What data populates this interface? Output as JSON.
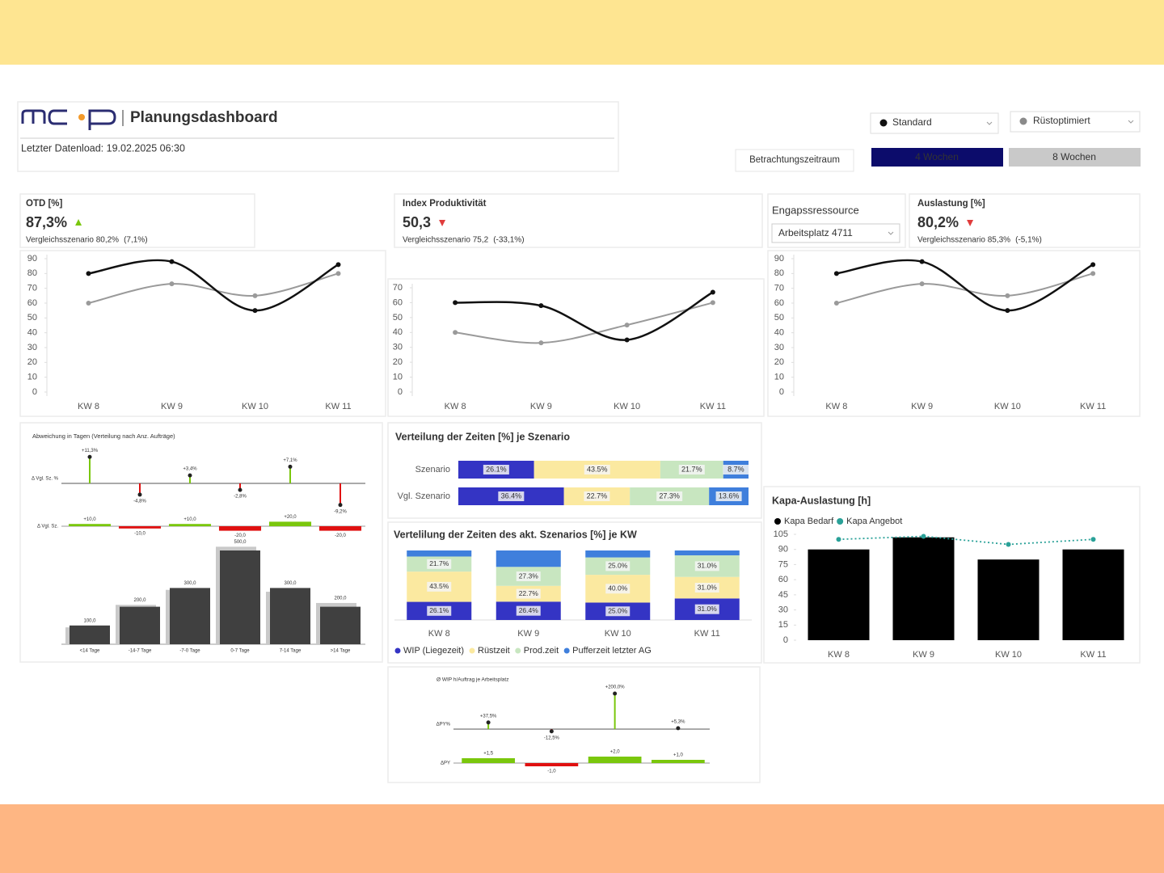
{
  "header": {
    "title": "Planungsdashboard",
    "last_load": "Letzter Datenload: 19.02.2025 06:30"
  },
  "controls": {
    "scenario": {
      "label": "Standard",
      "dot_color": "#111111"
    },
    "comparison": {
      "label": "Rüstoptimiert",
      "dot_color": "#8a8a8a"
    },
    "period_label": "Betrachtungszeitraum",
    "period_options": [
      {
        "label": "4 Wochen",
        "selected": true
      },
      {
        "label": "8 Wochen",
        "selected": false
      }
    ]
  },
  "kpis": [
    {
      "title": "OTD [%]",
      "value": "87,3%",
      "trend": "up",
      "trend_color": "#7ac70c",
      "comparison": "Vergleichsszenario 80,2%",
      "delta": "(7,1%)"
    },
    {
      "title": "Index Produktivität",
      "value": "50,3",
      "trend": "down",
      "trend_color": "#e03c3c",
      "comparison": "Vergleichsszenario 75,2",
      "delta": "(-33,1%)"
    },
    {
      "title": "Auslastung [%]",
      "value": "80,2%",
      "trend": "down",
      "trend_color": "#e03c3c",
      "comparison": "Vergleichsszenario 85,3%",
      "delta": "(-5,1%)"
    }
  ],
  "resource": {
    "label": "Engapssressource",
    "selected": "Arbeitsplatz 4711"
  },
  "chart_data": [
    {
      "type": "line",
      "categories": [
        "KW 8",
        "KW 9",
        "KW 10",
        "KW 11"
      ],
      "ylim": [
        0,
        90
      ],
      "yticks": [
        0,
        10,
        20,
        30,
        40,
        50,
        60,
        70,
        80,
        90
      ],
      "series": [
        {
          "color": "#111111",
          "values": [
            80,
            88,
            55,
            86
          ]
        },
        {
          "color": "#9a9a9a",
          "values": [
            60,
            73,
            65,
            80
          ]
        }
      ]
    },
    {
      "type": "line",
      "categories": [
        "KW 8",
        "KW 9",
        "KW 10",
        "KW 11"
      ],
      "ylim": [
        0,
        70
      ],
      "yticks": [
        0,
        10,
        20,
        30,
        40,
        50,
        60,
        70
      ],
      "series": [
        {
          "color": "#111111",
          "values": [
            60,
            58,
            35,
            67
          ]
        },
        {
          "color": "#9a9a9a",
          "values": [
            40,
            33,
            45,
            60
          ]
        }
      ]
    },
    {
      "type": "line",
      "categories": [
        "KW 8",
        "KW 9",
        "KW 10",
        "KW 11"
      ],
      "ylim": [
        0,
        90
      ],
      "yticks": [
        0,
        10,
        20,
        30,
        40,
        50,
        60,
        70,
        80,
        90
      ],
      "series": [
        {
          "color": "#111111",
          "values": [
            80,
            88,
            55,
            86
          ]
        },
        {
          "color": "#9a9a9a",
          "values": [
            60,
            73,
            65,
            80
          ]
        }
      ]
    },
    {
      "type": "deviation",
      "title": "Abweichung in Tagen (Verteilung nach Anz. Aufträge)",
      "categories": [
        "<14 Tage",
        "-14-7 Tage",
        "-7-0 Tage",
        "0-7 Tage",
        "7-14 Tage",
        ">14 Tage"
      ],
      "pct_axis_label": "Δ Vgl. Sz. %",
      "pct_values": [
        11.3,
        -4.8,
        3.4,
        -2.8,
        7.1,
        -9.2
      ],
      "pct_labels": [
        "+11,3%",
        "-4,8%",
        "+3,4%",
        "-2,8%",
        "+7,1%",
        "-9,2%"
      ],
      "abs_axis_label": "Δ Vgl. Sz.",
      "abs_values": [
        10,
        -10,
        10,
        -20,
        20,
        -20
      ],
      "abs_labels": [
        "+10,0",
        "-10,0",
        "+10,0",
        "-20,0",
        "+20,0",
        "-20,0"
      ],
      "values": [
        100,
        200,
        300,
        500,
        300,
        200
      ],
      "value_labels": [
        "100,0",
        "200,0",
        "300,0",
        "500,0",
        "300,0",
        "200,0"
      ],
      "comparison_values": [
        90,
        210,
        290,
        520,
        280,
        220
      ],
      "color": "#404040",
      "comparison_color": "#c9c9c9",
      "positive_color": "#7ac70c",
      "negative_color": "#e01010"
    },
    {
      "type": "hbar_stacked",
      "title": "Verteilung der Zeiten [%] je Szenario",
      "categories": [
        "Szenario",
        "Vgl. Szenario"
      ],
      "xlim": [
        0,
        100
      ],
      "series": [
        {
          "color": "#3434c4",
          "values": [
            26.1,
            36.4
          ],
          "value_labels": [
            "26.1%",
            "36.4%"
          ]
        },
        {
          "color": "#fbe9a0",
          "values": [
            43.5,
            22.7
          ],
          "value_labels": [
            "43.5%",
            "22.7%"
          ]
        },
        {
          "color": "#c8e6c0",
          "values": [
            21.7,
            27.3
          ],
          "value_labels": [
            "21.7%",
            "27.3%"
          ]
        },
        {
          "color": "#3f7fdc",
          "values": [
            8.7,
            13.6
          ],
          "value_labels": [
            "8.7%",
            "13.6%"
          ]
        }
      ]
    },
    {
      "type": "stacked_bar",
      "title": "Vertelilung der Zeiten des akt. Szenarios [%] je KW",
      "categories": [
        "KW 8",
        "KW 9",
        "KW 10",
        "KW 11"
      ],
      "ylim": [
        0,
        100
      ],
      "series": [
        {
          "name": "WIP (Liegezeit)",
          "color": "#3434c4",
          "values": [
            26.1,
            26.4,
            25.0,
            31.0
          ],
          "value_labels": [
            "26.1%",
            "26.4%",
            "25.0%",
            "31.0%"
          ]
        },
        {
          "name": "Rüstzeit",
          "color": "#fbe9a0",
          "values": [
            43.5,
            22.7,
            40.0,
            31.0
          ],
          "value_labels": [
            "43.5%",
            "22.7%",
            "40.0%",
            "31.0%"
          ]
        },
        {
          "name": "Prod.zeit",
          "color": "#c8e6c0",
          "values": [
            21.7,
            27.3,
            25.0,
            31.0
          ],
          "value_labels": [
            "21.7%",
            "27.3%",
            "25.0%",
            "31.0%"
          ]
        },
        {
          "name": "Pufferzeit letzter AG",
          "color": "#3f7fdc",
          "values": [
            8.7,
            23.6,
            10.0,
            7.0
          ],
          "value_labels": [
            null,
            null,
            null,
            null
          ]
        }
      ]
    },
    {
      "type": "combo",
      "title": "Kapa-Auslastung [h]",
      "categories": [
        "KW 8",
        "KW 9",
        "KW 10",
        "KW 11"
      ],
      "ylim": [
        0,
        105
      ],
      "yticks": [
        0,
        15,
        30,
        45,
        60,
        75,
        90,
        105
      ],
      "series": [
        {
          "name": "Kapa Bedarf",
          "kind": "bar",
          "color": "#000000",
          "values": [
            90,
            102,
            80,
            90
          ]
        },
        {
          "name": "Kapa Angebot",
          "kind": "line",
          "color": "#2aa198",
          "values": [
            100,
            103,
            95,
            100
          ]
        }
      ]
    },
    {
      "type": "deviation",
      "title": "Ø WIP h/Auftrag je Arbeitsplatz",
      "pct_axis_label": "ΔPY%",
      "pct_values": [
        37.5,
        -12.5,
        200.0,
        5.3
      ],
      "pct_labels": [
        "+37,5%",
        "-12,5%",
        "+200,0%",
        "+5,3%"
      ],
      "abs_axis_label": "ΔPY",
      "abs_values": [
        1.5,
        -1.0,
        2.0,
        1.0
      ],
      "abs_labels": [
        "+1,5",
        "-1,0",
        "+2,0",
        "+1,0"
      ],
      "positive_color": "#7ac70c",
      "negative_color": "#e01010"
    }
  ]
}
